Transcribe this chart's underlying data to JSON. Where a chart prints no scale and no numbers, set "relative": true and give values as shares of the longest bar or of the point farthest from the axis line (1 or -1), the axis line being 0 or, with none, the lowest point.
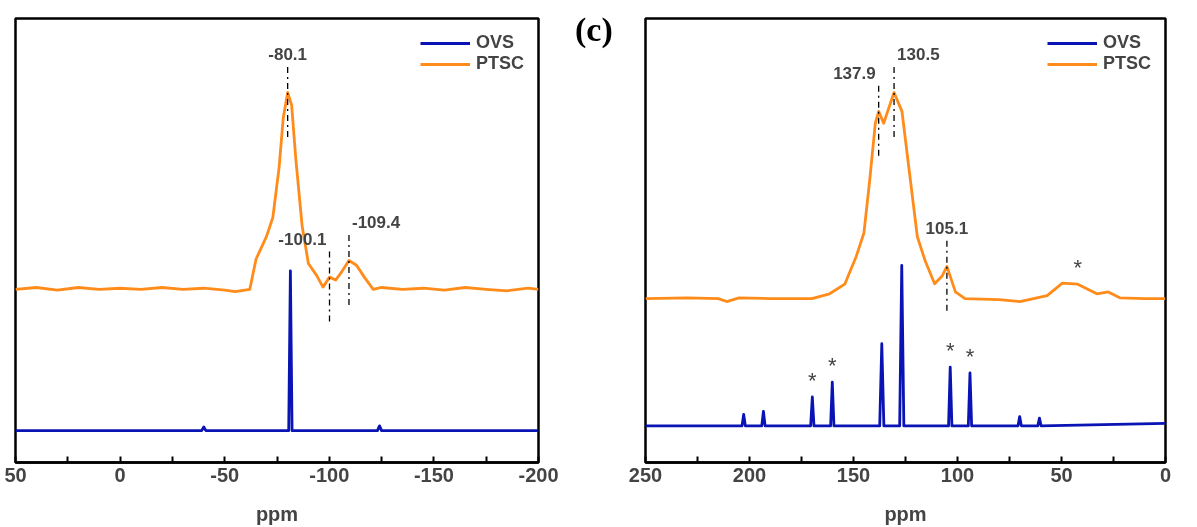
{
  "chart_data": [
    {
      "type": "line",
      "xlabel": "ppm",
      "relative": true,
      "legend": "top right",
      "grid": false,
      "tick_labels": "x",
      "marker": "none",
      "line_style": "solid",
      "xlim": [
        50,
        -200
      ],
      "xticks": [
        50,
        {
          "value": 25,
          "label": null
        },
        0,
        {
          "value": -25,
          "label": null
        },
        -50,
        {
          "value": -75,
          "label": null
        },
        -100,
        {
          "value": -125,
          "label": null
        },
        -150,
        {
          "value": -175,
          "label": null
        },
        -200
      ],
      "series": [
        {
          "name": "OVS",
          "color": "#0a14b4",
          "x": [
            50,
            -39,
            -40,
            -41,
            -80.6,
            -81.4,
            -82.2,
            -123,
            -124,
            -125,
            -200
          ],
          "values": [
            0.086,
            0.086,
            0.096,
            0.086,
            0.086,
            0.518,
            0.086,
            0.086,
            0.099,
            0.086,
            0.086
          ]
        },
        {
          "name": "PTSC",
          "color": "#ff8c1a",
          "x": [
            50,
            40,
            30,
            20,
            10,
            0,
            -10,
            -20,
            -30,
            -40,
            -50,
            -55,
            -62,
            -65,
            -70,
            -73,
            -76,
            -78,
            -80.1,
            -82,
            -84,
            -87,
            -90,
            -94,
            -97,
            -100.1,
            -103,
            -106,
            -109.4,
            -113,
            -117,
            -121,
            -125,
            -135,
            -145,
            -155,
            -165,
            -175,
            -185,
            -195,
            -200
          ],
          "values": [
            0.468,
            0.473,
            0.466,
            0.473,
            0.468,
            0.471,
            0.468,
            0.473,
            0.468,
            0.471,
            0.466,
            0.462,
            0.468,
            0.55,
            0.611,
            0.662,
            0.797,
            0.932,
            1,
            0.966,
            0.82,
            0.64,
            0.538,
            0.505,
            0.474,
            0.501,
            0.493,
            0.516,
            0.546,
            0.533,
            0.499,
            0.468,
            0.473,
            0.468,
            0.471,
            0.466,
            0.473,
            0.468,
            0.464,
            0.471,
            0.468
          ]
        }
      ],
      "annotations": [
        {
          "text": "-80.1",
          "x": -80.1,
          "y": 1
        },
        {
          "text": "-100.1",
          "x": -100.1,
          "y": 0.501
        },
        {
          "text": "-109.4",
          "x": -109.4,
          "y": 0.546
        }
      ]
    },
    {
      "type": "line",
      "xlabel": "ppm",
      "relative": true,
      "legend": "top right",
      "grid": false,
      "tick_labels": "x",
      "marker": "none",
      "line_style": "solid",
      "xlim": [
        250,
        0
      ],
      "xticks": [
        250,
        {
          "value": 225,
          "label": null
        },
        200,
        {
          "value": 175,
          "label": null
        },
        150,
        {
          "value": 125,
          "label": null
        },
        100,
        {
          "value": 75,
          "label": null
        },
        50,
        {
          "value": 25,
          "label": null
        },
        0
      ],
      "series": [
        {
          "name": "OVS",
          "color": "#0a14b4",
          "x": [
            250,
            203.6,
            202.8,
            202,
            194.1,
            193.3,
            192.5,
            170.6,
            169.8,
            169,
            161,
            160.2,
            159.4,
            137.4,
            136.4,
            135.4,
            127.8,
            126.8,
            125.8,
            104.3,
            103.5,
            102.7,
            94.8,
            94,
            93.2,
            70.9,
            70.1,
            69.3,
            61.4,
            60.6,
            59.8,
            0
          ],
          "values": [
            0.099,
            0.099,
            0.13,
            0.099,
            0.099,
            0.138,
            0.099,
            0.099,
            0.177,
            0.099,
            0.099,
            0.217,
            0.099,
            0.099,
            0.321,
            0.099,
            0.099,
            0.533,
            0.099,
            0.099,
            0.258,
            0.099,
            0.099,
            0.242,
            0.099,
            0.099,
            0.124,
            0.099,
            0.099,
            0.12,
            0.099,
            0.106
          ]
        },
        {
          "name": "PTSC",
          "color": "#ff8c1a",
          "x": [
            250,
            230,
            215,
            211,
            205,
            190,
            170,
            161.5,
            154.2,
            148.7,
            145,
            142.3,
            139.5,
            137.9,
            135.5,
            130.5,
            126.7,
            123,
            119.3,
            115.6,
            111,
            107.4,
            105.1,
            101,
            96.4,
            80,
            70,
            56.9,
            49.6,
            42.2,
            33,
            27.5,
            22,
            10,
            0
          ],
          "values": [
            0.443,
            0.445,
            0.443,
            0.435,
            0.445,
            0.443,
            0.443,
            0.456,
            0.482,
            0.557,
            0.62,
            0.758,
            0.917,
            0.949,
            0.917,
            1,
            0.949,
            0.779,
            0.61,
            0.546,
            0.483,
            0.504,
            0.53,
            0.461,
            0.443,
            0.44,
            0.435,
            0.451,
            0.485,
            0.482,
            0.456,
            0.461,
            0.445,
            0.443,
            0.443
          ]
        }
      ],
      "annotations": [
        "(c)",
        {
          "text": "137.9",
          "x": 137.9,
          "y": 0.949
        },
        {
          "text": "130.5",
          "x": 130.5,
          "y": 1
        },
        {
          "text": "105.1",
          "x": 105.1,
          "y": 0.53
        },
        {
          "text": "*",
          "x": 42.2,
          "y": 0.482
        },
        {
          "text": "*",
          "x": 169.8,
          "y": 0.177
        },
        {
          "text": "*",
          "x": 160.2,
          "y": 0.217
        },
        {
          "text": "*",
          "x": 103.5,
          "y": 0.258
        },
        {
          "text": "*",
          "x": 94,
          "y": 0.242
        }
      ]
    }
  ]
}
